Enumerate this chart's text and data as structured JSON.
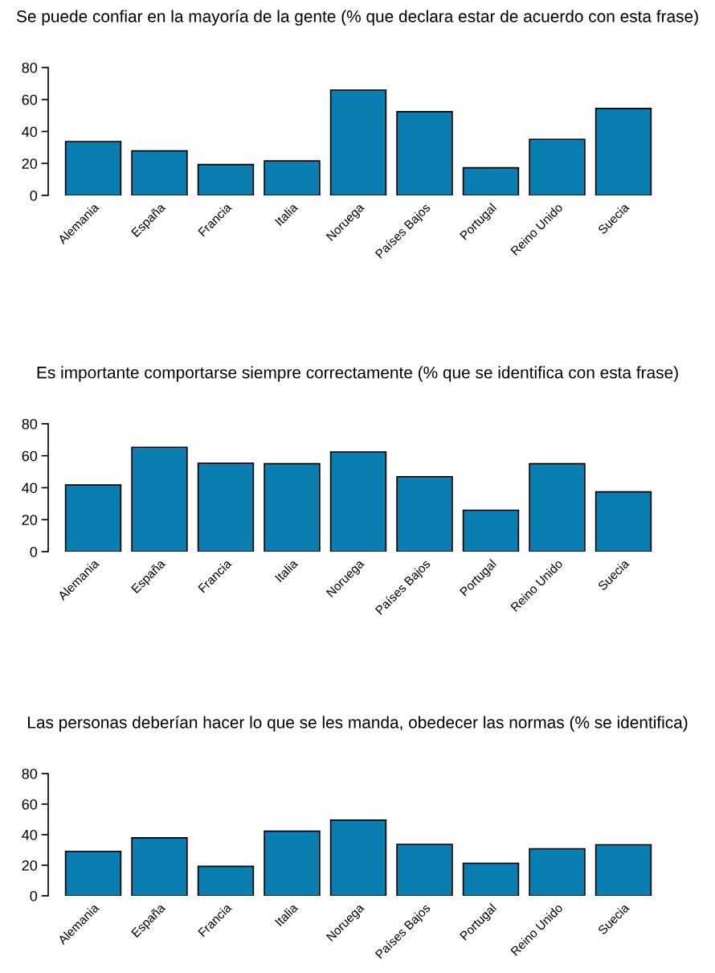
{
  "chart_data": [
    {
      "type": "bar",
      "title": "Se puede confiar en la mayoría de la gente (% que declara estar de acuerdo con esta frase)",
      "categories": [
        "Alemania",
        "España",
        "Francia",
        "Italia",
        "Noruega",
        "Países Bajos",
        "Portugal",
        "Reino Unido",
        "Suecia"
      ],
      "values": [
        33.7,
        27.9,
        19.3,
        21.6,
        65.9,
        52.4,
        17.3,
        35.1,
        54.4
      ],
      "color": "#0a7eb0",
      "ylim": [
        0,
        80
      ],
      "yticks": [
        0,
        20,
        40,
        60,
        80
      ],
      "grid": false,
      "legend": false
    },
    {
      "type": "bar",
      "title": "Es importante comportarse siempre correctamente (% que se identifica con esta frase)",
      "categories": [
        "Alemania",
        "España",
        "Francia",
        "Italia",
        "Noruega",
        "Países Bajos",
        "Portugal",
        "Reino Unido",
        "Suecia"
      ],
      "values": [
        41.7,
        65.3,
        55.3,
        55.0,
        62.4,
        46.9,
        25.9,
        55.0,
        37.4
      ],
      "color": "#0a7eb0",
      "ylim": [
        0,
        80
      ],
      "yticks": [
        0,
        20,
        40,
        60,
        80
      ],
      "grid": false,
      "legend": false
    },
    {
      "type": "bar",
      "title": "Las personas deberían hacer lo que se les manda, obedecer las normas (% se identifica)",
      "categories": [
        "Alemania",
        "España",
        "Francia",
        "Italia",
        "Noruega",
        "Países Bajos",
        "Portugal",
        "Reino Unido",
        "Suecia"
      ],
      "values": [
        29.1,
        38.0,
        19.3,
        42.3,
        49.5,
        33.7,
        21.3,
        30.8,
        33.4
      ],
      "color": "#0a7eb0",
      "ylim": [
        0,
        80
      ],
      "yticks": [
        0,
        20,
        40,
        60,
        80
      ],
      "grid": false,
      "legend": false
    }
  ]
}
